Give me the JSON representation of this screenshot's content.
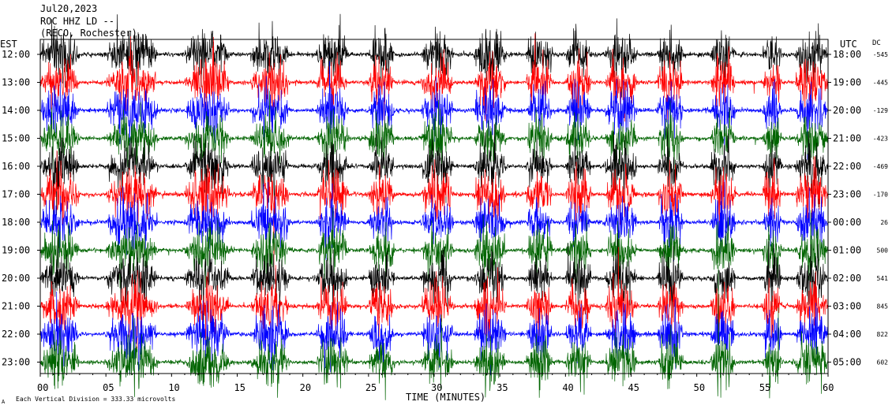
{
  "header": {
    "date": "Jul20,2023",
    "station": "ROC HHZ LD --",
    "location": "(RECO, Rochester)"
  },
  "left_zone": "EST",
  "right_zone": "UTC",
  "dc_header": "DC",
  "footer": {
    "scale_note": "Each Vertical Division =  333.33 microvolts",
    "mark": "A"
  },
  "colors": {
    "trace_cycle": [
      "#000000",
      "#ff0000",
      "#0000ff",
      "#006400"
    ],
    "frame": "#000000",
    "background": "#ffffff"
  },
  "chart_data": {
    "type": "line",
    "subtype": "helicorder",
    "xlabel": "TIME (MINUTES)",
    "xlim": [
      0,
      60
    ],
    "x_ticks": [
      "00",
      "05",
      "10",
      "15",
      "20",
      "25",
      "30",
      "35",
      "40",
      "45",
      "50",
      "55",
      "60"
    ],
    "vertical_division_microvolts": 333.33,
    "rows": [
      {
        "est": "12:00",
        "utc": "18:00",
        "dc": "-545",
        "color": "#000000"
      },
      {
        "est": "13:00",
        "utc": "19:00",
        "dc": "-445",
        "color": "#ff0000"
      },
      {
        "est": "14:00",
        "utc": "20:00",
        "dc": "-129",
        "color": "#0000ff"
      },
      {
        "est": "15:00",
        "utc": "21:00",
        "dc": "-423",
        "color": "#006400"
      },
      {
        "est": "16:00",
        "utc": "22:00",
        "dc": "-469",
        "color": "#000000"
      },
      {
        "est": "17:00",
        "utc": "23:00",
        "dc": "-170",
        "color": "#ff0000"
      },
      {
        "est": "18:00",
        "utc": "00:00",
        "dc": "26",
        "color": "#0000ff"
      },
      {
        "est": "19:00",
        "utc": "01:00",
        "dc": "500",
        "color": "#006400"
      },
      {
        "est": "20:00",
        "utc": "02:00",
        "dc": "541",
        "color": "#000000"
      },
      {
        "est": "21:00",
        "utc": "03:00",
        "dc": "845",
        "color": "#ff0000"
      },
      {
        "est": "22:00",
        "utc": "04:00",
        "dc": "822",
        "color": "#0000ff"
      },
      {
        "est": "23:00",
        "utc": "05:00",
        "dc": "602",
        "color": "#006400"
      }
    ],
    "activity_bursts_minutes": [
      [
        0,
        3
      ],
      [
        5,
        9
      ],
      [
        11,
        14.5
      ],
      [
        16,
        19
      ],
      [
        21,
        23.5
      ],
      [
        25,
        27
      ],
      [
        29,
        31.5
      ],
      [
        33,
        35.5
      ],
      [
        37,
        39
      ],
      [
        40,
        42
      ],
      [
        43,
        45.5
      ],
      [
        47,
        49
      ],
      [
        51,
        53
      ],
      [
        55,
        56.5
      ],
      [
        57.5,
        60
      ]
    ]
  }
}
